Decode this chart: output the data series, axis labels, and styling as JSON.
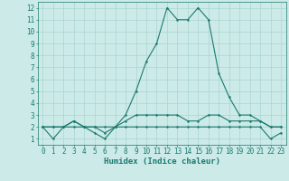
{
  "line1_x": [
    0,
    1,
    2,
    3,
    4,
    5,
    6,
    7,
    8,
    9,
    10,
    11,
    12,
    13,
    14,
    15,
    16,
    17,
    18,
    19,
    20,
    21,
    22,
    23
  ],
  "line1_y": [
    2,
    1,
    2,
    2.5,
    2,
    1.5,
    1,
    2,
    3,
    5,
    7.5,
    9,
    12,
    11,
    11,
    12,
    11,
    6.5,
    4.5,
    3,
    3,
    2.5,
    2,
    2
  ],
  "line2_x": [
    0,
    1,
    2,
    3,
    4,
    5,
    6,
    7,
    8,
    9,
    10,
    11,
    12,
    13,
    14,
    15,
    16,
    17,
    18,
    19,
    20,
    21,
    22,
    23
  ],
  "line2_y": [
    2,
    2,
    2,
    2.5,
    2,
    2,
    1.5,
    2,
    2.5,
    3,
    3,
    3,
    3,
    3,
    2.5,
    2.5,
    3,
    3,
    2.5,
    2.5,
    2.5,
    2.5,
    2,
    2
  ],
  "line3_x": [
    0,
    1,
    2,
    3,
    4,
    5,
    6,
    7,
    8,
    9,
    10,
    11,
    12,
    13,
    14,
    15,
    16,
    17,
    18,
    19,
    20,
    21,
    22,
    23
  ],
  "line3_y": [
    2,
    2,
    2,
    2,
    2,
    2,
    2,
    2,
    2,
    2,
    2,
    2,
    2,
    2,
    2,
    2,
    2,
    2,
    2,
    2,
    2,
    2,
    1,
    1.5
  ],
  "line_color": "#1a7a6e",
  "bg_color": "#cceae8",
  "grid_color": "#aad4d0",
  "xlabel": "Humidex (Indice chaleur)",
  "xlabel_fontsize": 6.5,
  "tick_fontsize": 5.5,
  "xlim": [
    -0.5,
    23.5
  ],
  "ylim": [
    0.5,
    12.5
  ],
  "yticks": [
    1,
    2,
    3,
    4,
    5,
    6,
    7,
    8,
    9,
    10,
    11,
    12
  ],
  "xticks": [
    0,
    1,
    2,
    3,
    4,
    5,
    6,
    7,
    8,
    9,
    10,
    11,
    12,
    13,
    14,
    15,
    16,
    17,
    18,
    19,
    20,
    21,
    22,
    23
  ],
  "marker_size": 1.8,
  "line_width": 0.8
}
